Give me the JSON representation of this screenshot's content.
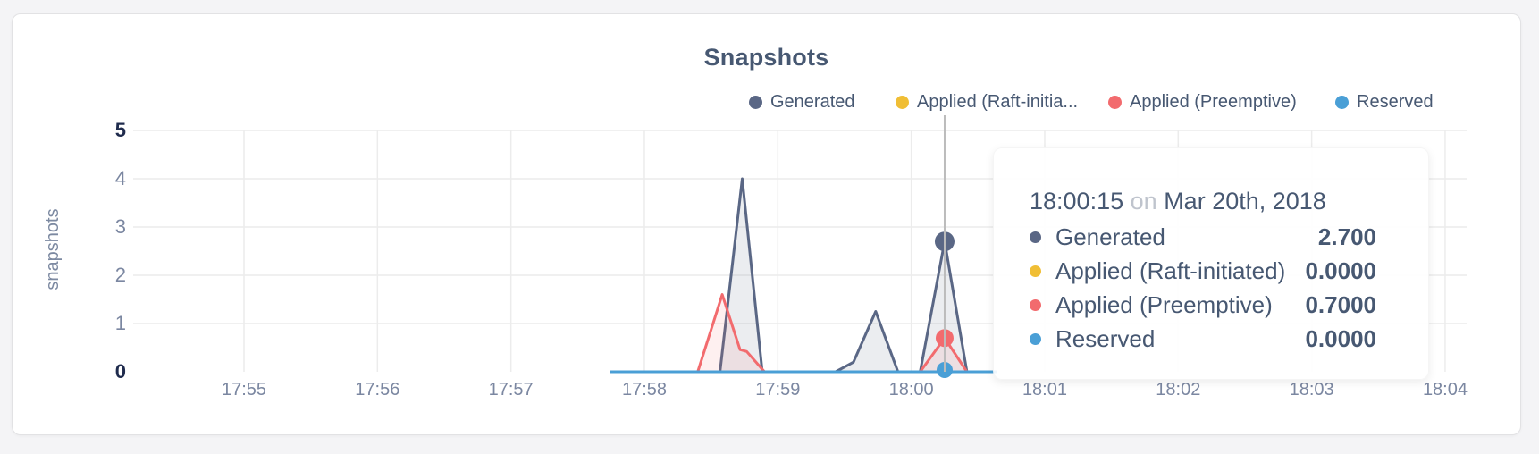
{
  "card": {
    "title": "Snapshots"
  },
  "colors": {
    "title_text": "#475872",
    "axis_text": "#7b87a1",
    "axis_text_emph": "#1f2b4d",
    "gridline": "#ececec",
    "hover_line": "#bcbcbc",
    "tooltip_text": "#475872",
    "tooltip_conjunction": "#bfc4cd"
  },
  "legend": {
    "items": [
      {
        "label": "Generated",
        "color": "#5a6785"
      },
      {
        "label": "Applied (Raft-initia...",
        "color": "#f0be35"
      },
      {
        "label": "Applied (Preemptive)",
        "color": "#f26b6e"
      },
      {
        "label": "Reserved",
        "color": "#4a9fd6"
      }
    ]
  },
  "chart_data": {
    "type": "area",
    "title": "Snapshots",
    "xlabel": "",
    "ylabel": "snapshots",
    "x_ticks": [
      "17:55",
      "17:56",
      "17:57",
      "17:58",
      "17:59",
      "18:00",
      "18:01",
      "18:02",
      "18:03",
      "18:04"
    ],
    "y_ticks": [
      0,
      1,
      2,
      3,
      4,
      5
    ],
    "ylim": [
      0,
      5
    ],
    "grid": true,
    "legend_position": "top-right",
    "series": [
      {
        "name": "Generated",
        "color": "#5a6785",
        "fill": "rgba(90,103,133,0.12)",
        "points": [
          [
            "17:57:45",
            0
          ],
          [
            "17:58:34",
            0
          ],
          [
            "17:58:44",
            4.0
          ],
          [
            "17:58:53",
            0
          ],
          [
            "17:59:26",
            0
          ],
          [
            "17:59:34",
            0.2
          ],
          [
            "17:59:44",
            1.25
          ],
          [
            "17:59:54",
            0
          ],
          [
            "18:00:04",
            0
          ],
          [
            "18:00:15",
            2.7
          ],
          [
            "18:00:25",
            0
          ],
          [
            "18:00:38",
            0
          ]
        ]
      },
      {
        "name": "Applied (Raft-initiated)",
        "color": "#f0be35",
        "fill": "rgba(240,190,53,0.10)",
        "points": [
          [
            "17:57:45",
            0
          ],
          [
            "18:00:38",
            0
          ]
        ]
      },
      {
        "name": "Applied (Preemptive)",
        "color": "#f26b6e",
        "fill": "rgba(242,107,110,0.10)",
        "points": [
          [
            "17:57:45",
            0
          ],
          [
            "17:58:24",
            0
          ],
          [
            "17:58:35",
            1.6
          ],
          [
            "17:58:43",
            0.46
          ],
          [
            "17:58:46",
            0.42
          ],
          [
            "17:58:54",
            0
          ],
          [
            "18:00:04",
            0
          ],
          [
            "18:00:15",
            0.7
          ],
          [
            "18:00:25",
            0
          ],
          [
            "18:00:38",
            0
          ]
        ]
      },
      {
        "name": "Reserved",
        "color": "#4a9fd6",
        "fill": "rgba(74,159,214,0.10)",
        "points": [
          [
            "17:57:45",
            0
          ],
          [
            "18:00:38",
            0
          ]
        ]
      }
    ],
    "hover": {
      "time": "18:00:15",
      "dots": [
        {
          "series": "Generated",
          "color": "#5a6785",
          "value": 2.7,
          "r": 11
        },
        {
          "series": "Applied (Preemptive)",
          "color": "#f26b6e",
          "value": 0.7,
          "r": 10
        },
        {
          "series": "Reserved",
          "color": "#4a9fd6",
          "value": 0,
          "r": 9
        }
      ]
    }
  },
  "tooltip": {
    "time": "18:00:15",
    "conjunction": "on",
    "date": "Mar 20th, 2018",
    "rows": [
      {
        "label": "Generated",
        "color": "#5a6785",
        "value": "2.700"
      },
      {
        "label": "Applied (Raft-initiated)",
        "color": "#f0be35",
        "value": "0.0000"
      },
      {
        "label": "Applied (Preemptive)",
        "color": "#f26b6e",
        "value": "0.7000"
      },
      {
        "label": "Reserved",
        "color": "#4a9fd6",
        "value": "0.0000"
      }
    ]
  }
}
